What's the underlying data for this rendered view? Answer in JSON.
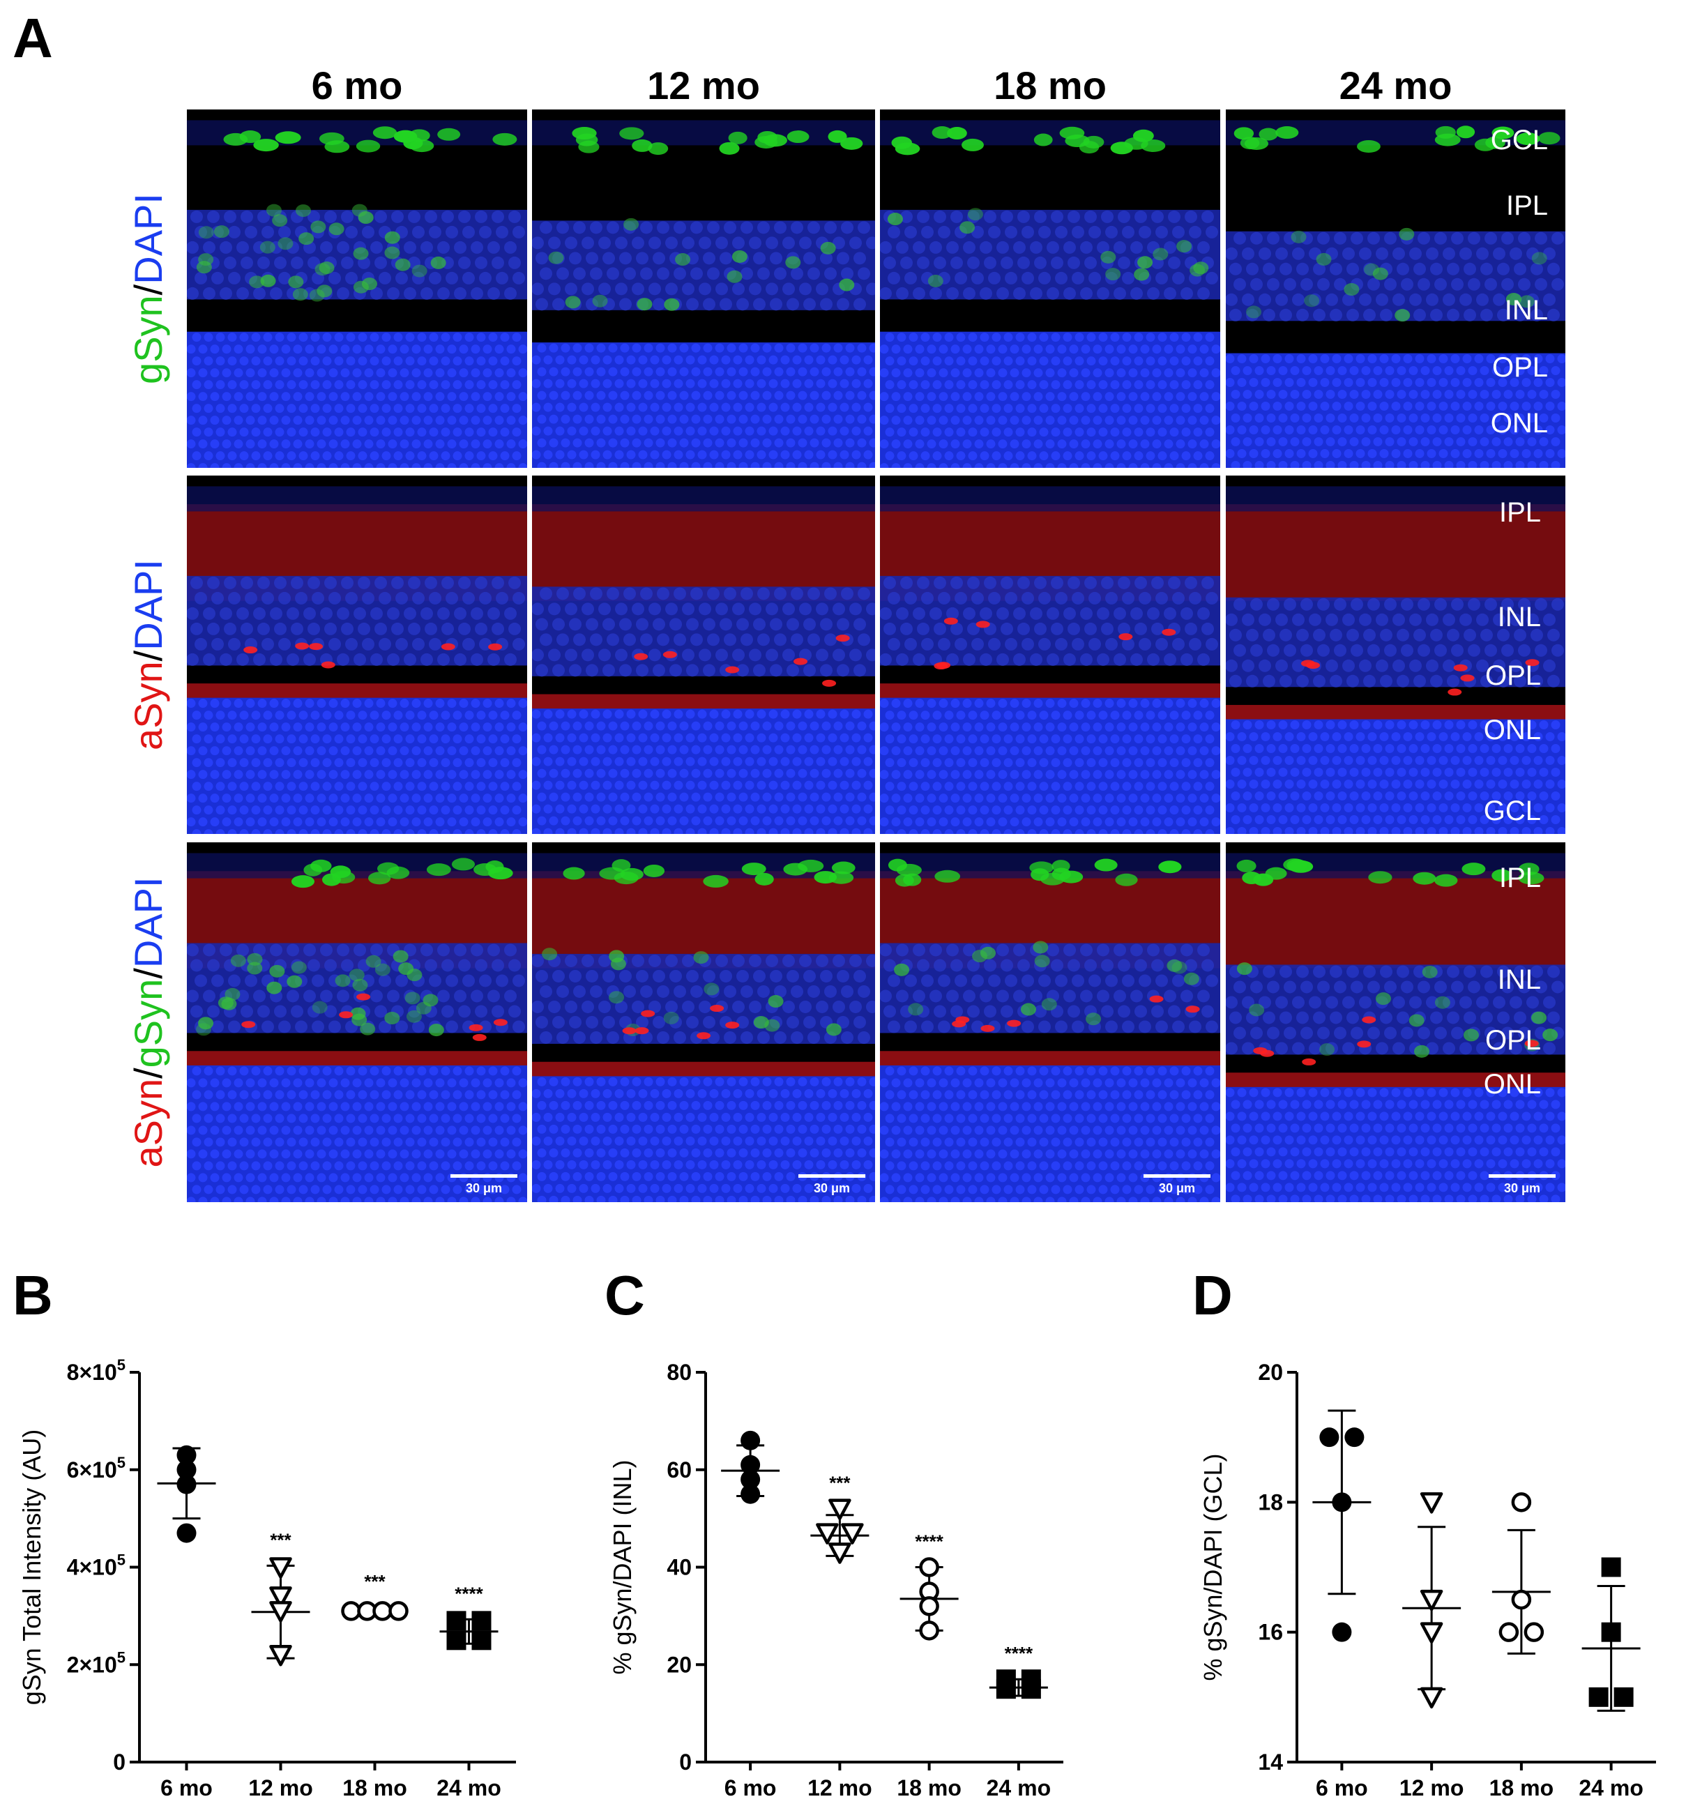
{
  "figure": {
    "panel_a_letter": "A",
    "columns": [
      "6 mo",
      "12 mo",
      "18 mo",
      "24 mo"
    ],
    "rows": [
      {
        "label_parts": [
          {
            "text": "gSyn",
            "color": "#1fc21f"
          },
          {
            "text": "/",
            "color": "#000000"
          },
          {
            "text": "DAPI",
            "color": "#1a3df0"
          }
        ]
      },
      {
        "label_parts": [
          {
            "text": "aSyn",
            "color": "#e01515"
          },
          {
            "text": "/",
            "color": "#000000"
          },
          {
            "text": "DAPI",
            "color": "#1a3df0"
          }
        ]
      },
      {
        "label_parts": [
          {
            "text": "aSyn",
            "color": "#e01515"
          },
          {
            "text": "/",
            "color": "#000000"
          },
          {
            "text": "gSyn",
            "color": "#1fc21f"
          },
          {
            "text": "/",
            "color": "#000000"
          },
          {
            "text": "DAPI",
            "color": "#1a3df0"
          }
        ]
      }
    ],
    "layer_labels_row1": [
      "GCL",
      "IPL",
      "INL",
      "OPL",
      "ONL"
    ],
    "layer_labels_row2": [
      "IPL",
      "INL",
      "OPL",
      "ONL",
      "GCL"
    ],
    "layer_labels_row3": [
      "IPL",
      "INL",
      "OPL",
      "ONL"
    ],
    "scale_bar_label": "30 μm",
    "colors": {
      "dapi": "#1a2fd6",
      "gsyn": "#22d422",
      "asyn": "#c8161a",
      "background": "#000000"
    }
  },
  "chart_data": [
    {
      "panel": "B",
      "type": "scatter",
      "categories": [
        "6 mo",
        "12 mo",
        "18 mo",
        "24 mo"
      ],
      "ylabel": "gSyn Total Intensity (AU)",
      "ylim": [
        0,
        800000
      ],
      "yticks": [
        0,
        200000,
        400000,
        600000,
        800000
      ],
      "ytick_labels": [
        "0",
        "2×10",
        "4×10",
        "6×10",
        "8×10"
      ],
      "ytick_exponents": [
        "",
        "5",
        "5",
        "5",
        "5"
      ],
      "markers": [
        "circle-filled",
        "triangle-down-open",
        "circle-open",
        "square-filled"
      ],
      "points": [
        [
          600000,
          630000,
          570000,
          470000
        ],
        [
          400000,
          340000,
          310000,
          220000
        ],
        [
          310000,
          310000,
          310000,
          310000
        ],
        [
          290000,
          290000,
          250000,
          250000
        ]
      ],
      "mean": [
        572000,
        308000,
        310000,
        268000
      ],
      "sd": [
        72000,
        95000,
        8000,
        25000
      ],
      "significance": [
        "",
        "***",
        "***",
        "****"
      ]
    },
    {
      "panel": "C",
      "type": "scatter",
      "categories": [
        "6 mo",
        "12 mo",
        "18 mo",
        "24 mo"
      ],
      "ylabel": "% gSyn/DAPI (INL)",
      "ylim": [
        0,
        80
      ],
      "yticks": [
        0,
        20,
        40,
        60,
        80
      ],
      "ytick_labels": [
        "0",
        "20",
        "40",
        "60",
        "80"
      ],
      "markers": [
        "circle-filled",
        "triangle-down-open",
        "circle-open",
        "square-filled"
      ],
      "points": [
        [
          66,
          61,
          58,
          55
        ],
        [
          52,
          47,
          47,
          43
        ],
        [
          40,
          35,
          32,
          27
        ],
        [
          17,
          17,
          15,
          15
        ]
      ],
      "mean": [
        59.8,
        46.5,
        33.5,
        15.3
      ],
      "sd": [
        5.2,
        4.2,
        6.5,
        1.7
      ],
      "significance": [
        "",
        "***",
        "****",
        "****"
      ]
    },
    {
      "panel": "D",
      "type": "scatter",
      "categories": [
        "6 mo",
        "12 mo",
        "18 mo",
        "24 mo"
      ],
      "ylabel": "% gSyn/DAPI  (GCL)",
      "ylim": [
        14,
        20
      ],
      "yticks": [
        14,
        16,
        18,
        20
      ],
      "ytick_labels": [
        "14",
        "16",
        "18",
        "20"
      ],
      "markers": [
        "circle-filled",
        "triangle-down-open",
        "circle-open",
        "square-filled"
      ],
      "points": [
        [
          19,
          19,
          18,
          16
        ],
        [
          18,
          16.5,
          16,
          15
        ],
        [
          18,
          16.5,
          16,
          16
        ],
        [
          17,
          16,
          15,
          15
        ]
      ],
      "mean": [
        18.0,
        16.37,
        16.62,
        15.75
      ],
      "sd": [
        1.41,
        1.25,
        0.95,
        0.96
      ],
      "significance": [
        "",
        "",
        "",
        ""
      ]
    }
  ]
}
